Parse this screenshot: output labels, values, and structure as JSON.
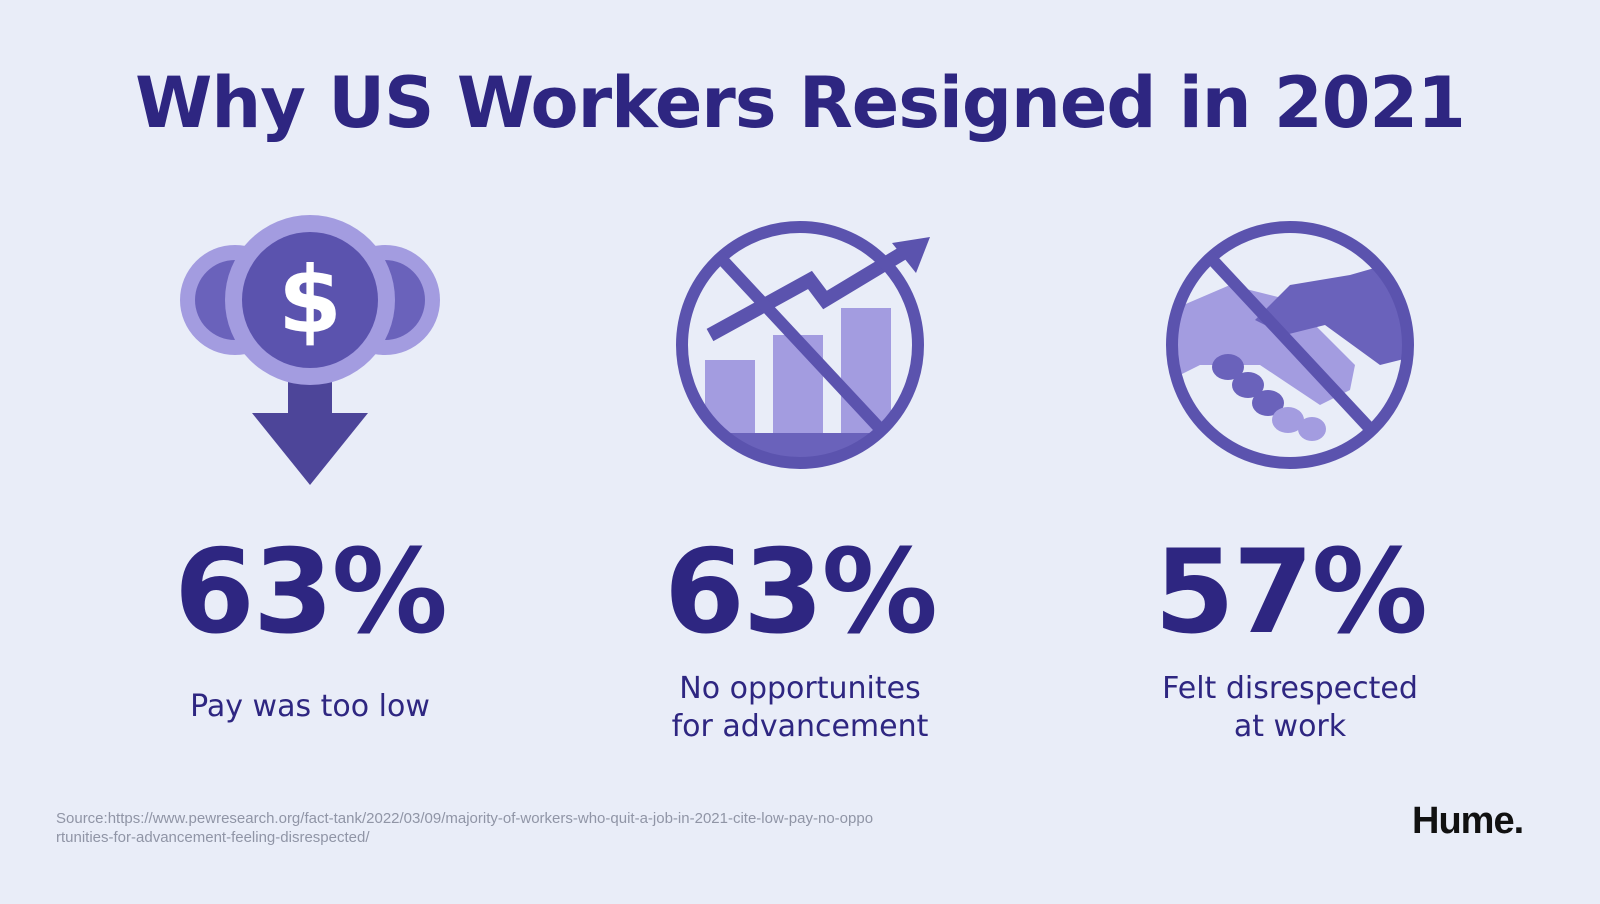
{
  "title": "Why US Workers Resigned in 2021",
  "colors": {
    "background": "#e9edf8",
    "primary": "#2e2681",
    "icon_dark": "#5b53ae",
    "icon_mid": "#7a72c8",
    "icon_light": "#a39ce0",
    "source_text": "#9095a6"
  },
  "stats": [
    {
      "icon": "coin-down-arrow-icon",
      "percent": "63%",
      "label_lines": [
        "Pay was too low"
      ]
    },
    {
      "icon": "no-growth-chart-icon",
      "percent": "63%",
      "label_lines": [
        "No opportunites",
        "for advancement"
      ]
    },
    {
      "icon": "no-handshake-icon",
      "percent": "57%",
      "label_lines": [
        "Felt disrespected",
        "at work"
      ]
    }
  ],
  "source_lines": [
    "Source:https://www.pewresearch.org/fact-tank/2022/03/09/majority-of-workers-who-quit-a-job-in-2021-cite-low-pay-no-oppo",
    "rtunities-for-advancement-feeling-disrespected/"
  ],
  "brand": "Hume."
}
